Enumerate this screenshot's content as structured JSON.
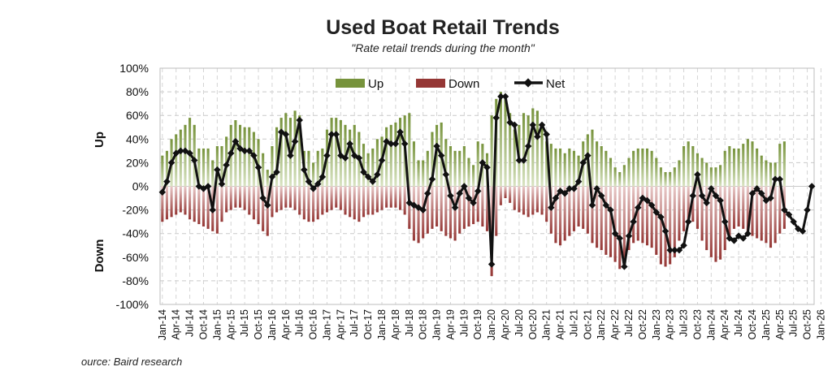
{
  "chart_data": {
    "type": "bar",
    "title": "Used Boat Retail Trends",
    "subtitle": "\"Rate retail trends during the month\"",
    "ylabel_up": "Up",
    "ylabel_down": "Down",
    "ylim": [
      -100,
      100
    ],
    "yticks": [
      "100%",
      "80%",
      "60%",
      "40%",
      "20%",
      "0%",
      "-20%",
      "-40%",
      "-60%",
      "-80%",
      "-100%"
    ],
    "start_month": "Jan-14",
    "end_month": "Jan-26",
    "xtick_labels": [
      "Jan-14",
      "Apr-14",
      "Jul-14",
      "Oct-14",
      "Jan-15",
      "Apr-15",
      "Jul-15",
      "Oct-15",
      "Jan-16",
      "Apr-16",
      "Jul-16",
      "Oct-16",
      "Jan-17",
      "Apr-17",
      "Jul-17",
      "Oct-17",
      "Jan-18",
      "Apr-18",
      "Jul-18",
      "Oct-18",
      "Jan-19",
      "Apr-19",
      "Jul-19",
      "Oct-19",
      "Jan-20",
      "Apr-20",
      "Jul-20",
      "Oct-20",
      "Jan-21",
      "Apr-21",
      "Jul-21",
      "Oct-21",
      "Jan-22",
      "Apr-22",
      "Jul-22",
      "Oct-22",
      "Jan-23",
      "Apr-23",
      "Jul-23",
      "Oct-23",
      "Jan-24",
      "Apr-24",
      "Jul-24",
      "Oct-24",
      "Jan-25",
      "Apr-25",
      "Jul-25",
      "Oct-25",
      "Jan-26"
    ],
    "legend": {
      "placement": "top-center",
      "entries": [
        "Up",
        "Down",
        "Net"
      ]
    },
    "grid": true,
    "series": [
      {
        "name": "Up",
        "color": "#77933c",
        "values": [
          26,
          30,
          40,
          44,
          48,
          52,
          58,
          52,
          32,
          32,
          32,
          22,
          34,
          34,
          42,
          52,
          56,
          52,
          50,
          50,
          46,
          40,
          28,
          14,
          34,
          50,
          58,
          62,
          58,
          64,
          60,
          30,
          30,
          20,
          30,
          32,
          48,
          58,
          58,
          56,
          52,
          48,
          52,
          46,
          36,
          28,
          32,
          40,
          42,
          50,
          52,
          54,
          58,
          60,
          62,
          38,
          22,
          22,
          30,
          46,
          52,
          54,
          40,
          34,
          30,
          30,
          34,
          24,
          18,
          38,
          36,
          28,
          60,
          74,
          80,
          74,
          62,
          48,
          52,
          62,
          60,
          66,
          64,
          50,
          38,
          36,
          32,
          32,
          28,
          32,
          30,
          26,
          38,
          44,
          48,
          38,
          34,
          30,
          24,
          16,
          12,
          18,
          24,
          30,
          32,
          32,
          32,
          30,
          24,
          16,
          12,
          12,
          16,
          22,
          34,
          38,
          34,
          28,
          24,
          20,
          16,
          16,
          18,
          30,
          34,
          32,
          32,
          36,
          40,
          38,
          32,
          26,
          22,
          20,
          20,
          36,
          38
        ]
      },
      {
        "name": "Down",
        "color": "#953735",
        "values": [
          -30,
          -28,
          -26,
          -24,
          -22,
          -24,
          -28,
          -30,
          -32,
          -34,
          -36,
          -38,
          -40,
          -30,
          -22,
          -20,
          -18,
          -18,
          -20,
          -24,
          -28,
          -32,
          -38,
          -42,
          -26,
          -22,
          -20,
          -18,
          -18,
          -20,
          -24,
          -28,
          -30,
          -30,
          -28,
          -24,
          -22,
          -20,
          -18,
          -20,
          -24,
          -26,
          -28,
          -30,
          -26,
          -24,
          -24,
          -22,
          -20,
          -18,
          -18,
          -18,
          -20,
          -24,
          -36,
          -46,
          -48,
          -44,
          -40,
          -36,
          -34,
          -38,
          -42,
          -44,
          -46,
          -40,
          -36,
          -34,
          -32,
          -30,
          -34,
          -38,
          -76,
          -42,
          -16,
          -10,
          -14,
          -20,
          -22,
          -24,
          -26,
          -24,
          -22,
          -24,
          -30,
          -40,
          -48,
          -50,
          -46,
          -42,
          -38,
          -34,
          -36,
          -40,
          -48,
          -52,
          -54,
          -58,
          -60,
          -64,
          -70,
          -68,
          -54,
          -48,
          -46,
          -48,
          -50,
          -52,
          -58,
          -66,
          -68,
          -66,
          -60,
          -46,
          -38,
          -32,
          -30,
          -36,
          -46,
          -54,
          -60,
          -64,
          -62,
          -54,
          -44,
          -36,
          -34,
          -36,
          -40,
          -42,
          -44,
          -46,
          -48,
          -52,
          -48,
          -40,
          -36
        ]
      },
      {
        "name": "Net",
        "color": "#111111",
        "values": [
          -5,
          4,
          20,
          28,
          30,
          30,
          28,
          22,
          0,
          -2,
          0,
          -20,
          14,
          2,
          18,
          28,
          38,
          32,
          30,
          30,
          26,
          16,
          -10,
          -16,
          8,
          12,
          46,
          44,
          26,
          38,
          56,
          14,
          4,
          -2,
          2,
          8,
          26,
          44,
          44,
          26,
          24,
          36,
          26,
          24,
          12,
          8,
          4,
          10,
          22,
          38,
          36,
          36,
          46,
          36,
          -14,
          -16,
          -18,
          -20,
          -6,
          6,
          34,
          26,
          10,
          -8,
          -18,
          -6,
          0,
          -10,
          -14,
          -4,
          20,
          16,
          -66,
          58,
          76,
          76,
          54,
          52,
          22,
          22,
          34,
          52,
          42,
          52,
          44,
          -18,
          -10,
          -4,
          -6,
          -2,
          -2,
          4,
          20,
          26,
          -16,
          -2,
          -8,
          -16,
          -20,
          -40,
          -44,
          -68,
          -42,
          -30,
          -18,
          -10,
          -12,
          -16,
          -22,
          -26,
          -38,
          -54,
          -54,
          -54,
          -50,
          -30,
          -8,
          10,
          -8,
          -14,
          -2,
          -8,
          -12,
          -30,
          -44,
          -46,
          -42,
          -44,
          -40,
          -6,
          -2,
          -6,
          -12,
          -10,
          6,
          6,
          -20,
          -24,
          -30,
          -36,
          -38,
          -20,
          0
        ]
      }
    ]
  },
  "source_text": "ource: Baird research"
}
